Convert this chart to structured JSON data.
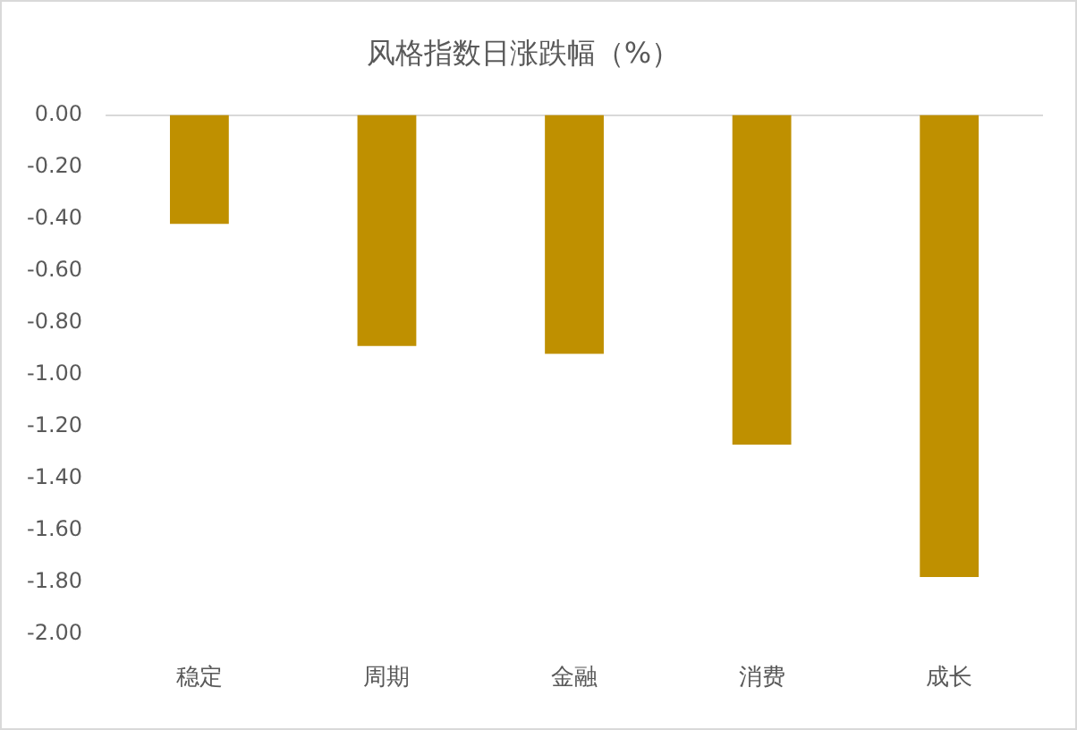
{
  "chart_data": {
    "type": "bar",
    "title": "风格指数日涨跌幅（%）",
    "categories": [
      "稳定",
      "周期",
      "金融",
      "消费",
      "成长"
    ],
    "values": [
      -0.42,
      -0.89,
      -0.92,
      -1.27,
      -1.78
    ],
    "color": "#bf9000",
    "ylim": [
      -2,
      0
    ],
    "yticks": [
      {
        "value": 0,
        "label": "0.00"
      },
      {
        "value": -0.2,
        "label": "-0.20"
      },
      {
        "value": -0.4,
        "label": "-0.40"
      },
      {
        "value": -0.6,
        "label": "-0.60"
      },
      {
        "value": -0.8,
        "label": "-0.80"
      },
      {
        "value": -1,
        "label": "-1.00"
      },
      {
        "value": -1.2,
        "label": "-1.20"
      },
      {
        "value": -1.4,
        "label": "-1.40"
      },
      {
        "value": -1.6,
        "label": "-1.60"
      },
      {
        "value": -1.8,
        "label": "-1.80"
      },
      {
        "value": -2,
        "label": "-2.00"
      }
    ]
  }
}
